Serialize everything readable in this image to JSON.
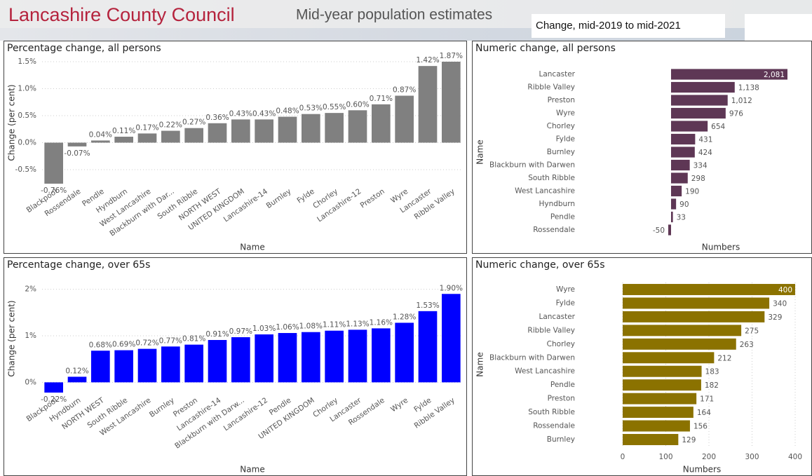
{
  "header": {
    "organisation": "Lancashire County Council",
    "title": "Mid-year population estimates",
    "filter": "Change, mid-2019 to mid-2021"
  },
  "chart_data": [
    {
      "type": "bar",
      "title": "Percentage change, all persons",
      "color": "#808080",
      "grid": true,
      "x_label": "Name",
      "y_label": "Change (per cent)",
      "categories": [
        "Blackpool",
        "Rossendale",
        "Pendle",
        "Hyndburn",
        "West Lancashire",
        "Blackburn with Dar...",
        "South Ribble",
        "NORTH WEST",
        "UNITED KINGDOM",
        "Lancashire-14",
        "Burnley",
        "Fylde",
        "Chorley",
        "Lancashire-12",
        "Preston",
        "Wyre",
        "Lancaster",
        "Ribble Valley"
      ],
      "values": [
        -0.76,
        -0.07,
        0.04,
        0.11,
        0.17,
        0.22,
        0.27,
        0.36,
        0.43,
        0.43,
        0.48,
        0.53,
        0.55,
        0.6,
        0.71,
        0.87,
        1.42,
        1.87
      ],
      "value_labels": [
        "-0.76%",
        "-0.07%",
        "0.04%",
        "0.11%",
        "0.17%",
        "0.22%",
        "0.27%",
        "0.36%",
        "0.43%",
        "0.43%",
        "0.48%",
        "0.53%",
        "0.55%",
        "0.60%",
        "0.71%",
        "0.87%",
        "1.42%",
        "1.87%"
      ],
      "ylim": [
        -0.76,
        1.5
      ],
      "yticks": [
        {
          "value": -0.5,
          "label": "-0.5%"
        },
        {
          "value": 0,
          "label": "0.0%"
        },
        {
          "value": 0.5,
          "label": "0.5%"
        },
        {
          "value": 1.0,
          "label": "1.0%"
        },
        {
          "value": 1.5,
          "label": "1.5%"
        }
      ]
    },
    {
      "type": "barh",
      "title": "Numeric change, all persons",
      "color": "#5e3755",
      "x_label": "Numbers",
      "y_label": "Name",
      "categories": [
        "Lancaster",
        "Ribble Valley",
        "Preston",
        "Wyre",
        "Chorley",
        "Fylde",
        "Burnley",
        "Blackburn with Darwen",
        "South Ribble",
        "West Lancashire",
        "Hyndburn",
        "Pendle",
        "Rossendale"
      ],
      "values": [
        2081,
        1138,
        1012,
        976,
        654,
        431,
        424,
        334,
        298,
        190,
        90,
        33,
        -50
      ],
      "value_labels": [
        "2,081",
        "1,138",
        "1,012",
        "976",
        "654",
        "431",
        "424",
        "334",
        "298",
        "190",
        "90",
        "33",
        "-50"
      ],
      "xlim": [
        -50,
        2081
      ]
    },
    {
      "type": "bar",
      "title": "Percentage change, over 65s",
      "color": "#0000ff",
      "grid": true,
      "x_label": "Name",
      "y_label": "Change (per cent)",
      "categories": [
        "Blackpool",
        "Hyndburn",
        "NORTH WEST",
        "South Ribble",
        "West Lancashire",
        "Burnley",
        "Preston",
        "Lancashire-14",
        "Blackburn with Darw...",
        "Lancashire-12",
        "Pendle",
        "UNITED KINGDOM",
        "Chorley",
        "Lancaster",
        "Rossendale",
        "Wyre",
        "Fylde",
        "Ribble Valley"
      ],
      "values": [
        -0.22,
        0.12,
        0.68,
        0.69,
        0.72,
        0.77,
        0.81,
        0.91,
        0.97,
        1.03,
        1.06,
        1.08,
        1.11,
        1.13,
        1.16,
        1.28,
        1.53,
        1.9
      ],
      "value_labels": [
        "-0.22%",
        "0.12%",
        "0.68%",
        "0.69%",
        "0.72%",
        "0.77%",
        "0.81%",
        "0.91%",
        "0.97%",
        "1.03%",
        "1.06%",
        "1.08%",
        "1.11%",
        "1.13%",
        "1.16%",
        "1.28%",
        "1.53%",
        "1.90%"
      ],
      "ylim": [
        -0.22,
        2.1
      ],
      "yticks": [
        {
          "value": 0,
          "label": "0%"
        },
        {
          "value": 1,
          "label": "1%"
        },
        {
          "value": 2,
          "label": "2%"
        }
      ]
    },
    {
      "type": "barh",
      "title": "Numeric change, over 65s",
      "color": "#8b7200",
      "x_label": "Numbers",
      "y_label": "Name",
      "categories": [
        "Wyre",
        "Fylde",
        "Lancaster",
        "Ribble Valley",
        "Chorley",
        "Blackburn with Darwen",
        "West Lancashire",
        "Pendle",
        "Preston",
        "South Ribble",
        "Rossendale",
        "Burnley"
      ],
      "values": [
        400,
        340,
        329,
        275,
        263,
        212,
        183,
        182,
        171,
        164,
        156,
        129
      ],
      "xlim": [
        0,
        400
      ],
      "xticks": [
        0,
        100,
        200,
        300,
        400
      ]
    }
  ]
}
